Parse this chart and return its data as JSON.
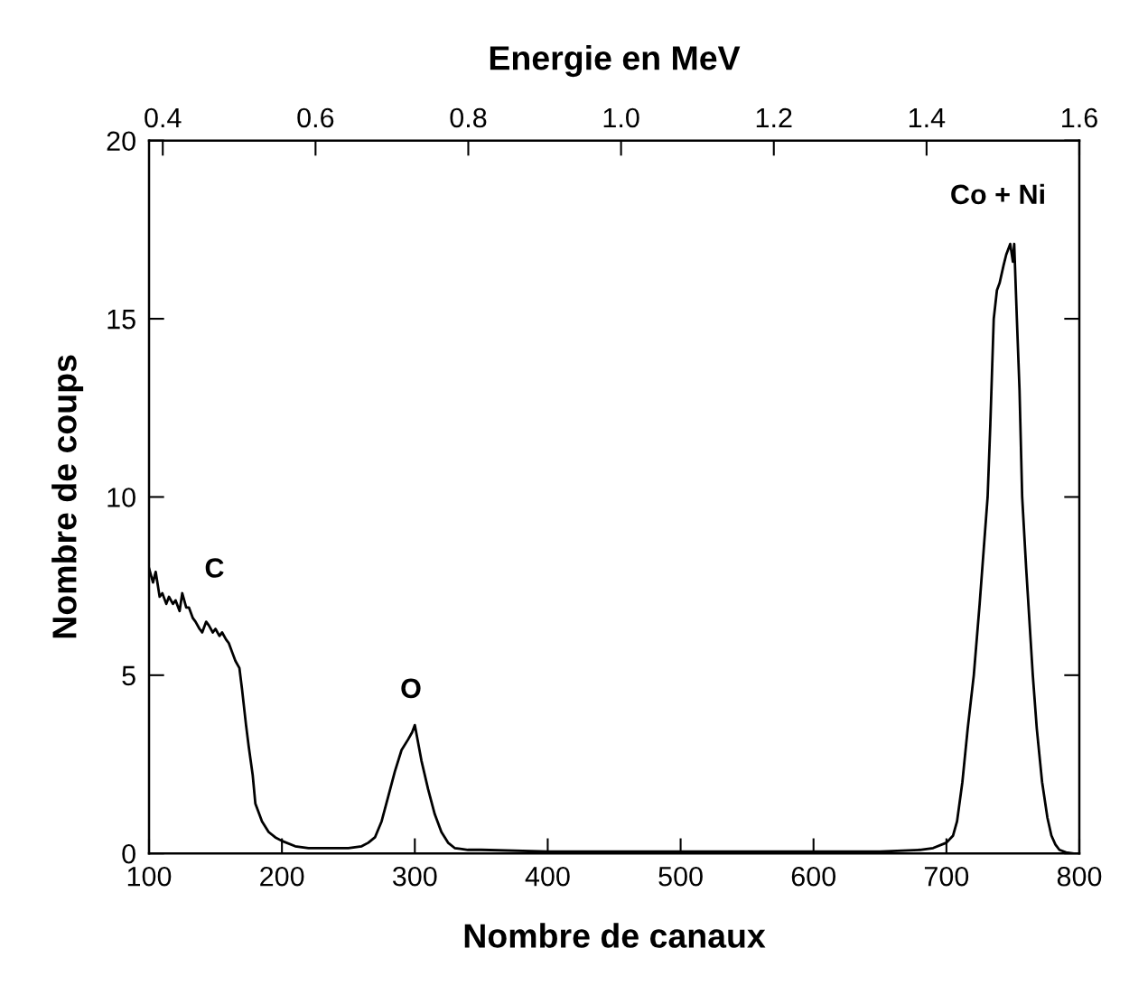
{
  "chart_data": {
    "type": "line",
    "xlabel": "Nombre de canaux",
    "ylabel": "Nombre de coups",
    "x2label": "Energie en MeV",
    "series": [
      {
        "color": "#000000",
        "x": [
          100,
          103,
          105,
          108,
          110,
          113,
          115,
          118,
          120,
          123,
          125,
          128,
          130,
          133,
          135,
          138,
          140,
          143,
          145,
          148,
          150,
          153,
          155,
          158,
          160,
          163,
          165,
          168,
          170,
          173,
          175,
          178,
          180,
          185,
          190,
          195,
          200,
          210,
          220,
          230,
          240,
          250,
          260,
          265,
          270,
          275,
          280,
          285,
          290,
          295,
          298,
          300,
          303,
          305,
          310,
          315,
          320,
          325,
          330,
          340,
          350,
          400,
          450,
          500,
          550,
          600,
          650,
          680,
          690,
          700,
          705,
          708,
          712,
          716,
          720.6,
          725,
          728,
          731,
          733,
          735.6,
          738,
          740,
          743,
          745,
          748,
          750,
          751,
          753,
          755,
          757,
          760,
          765,
          768,
          772,
          776,
          779,
          782,
          785,
          790,
          795
        ],
        "values": [
          8.0,
          7.6,
          7.9,
          7.2,
          7.3,
          7.0,
          7.2,
          7.0,
          7.1,
          6.8,
          7.3,
          6.9,
          6.9,
          6.6,
          6.5,
          6.3,
          6.2,
          6.5,
          6.4,
          6.2,
          6.3,
          6.1,
          6.2,
          6.0,
          5.9,
          5.6,
          5.4,
          5.2,
          4.6,
          3.6,
          3.0,
          2.2,
          1.4,
          0.9,
          0.6,
          0.45,
          0.35,
          0.2,
          0.15,
          0.15,
          0.15,
          0.15,
          0.2,
          0.3,
          0.45,
          0.9,
          1.6,
          2.3,
          2.9,
          3.2,
          3.4,
          3.6,
          3.0,
          2.6,
          1.8,
          1.1,
          0.6,
          0.3,
          0.15,
          0.1,
          0.1,
          0.05,
          0.05,
          0.05,
          0.05,
          0.05,
          0.05,
          0.1,
          0.15,
          0.3,
          0.5,
          0.9,
          2.0,
          3.5,
          5.0,
          7.0,
          8.5,
          10.0,
          12.0,
          15.0,
          15.8,
          16.0,
          16.5,
          16.8,
          17.1,
          16.6,
          17.1,
          15.0,
          13.0,
          10.0,
          8.0,
          5.0,
          3.5,
          2.0,
          1.0,
          0.5,
          0.25,
          0.1,
          0.03,
          0.0
        ]
      }
    ],
    "xlim": [
      100,
      800
    ],
    "xticks": [
      100,
      200,
      300,
      400,
      500,
      600,
      700,
      800
    ],
    "ylim": [
      0,
      20
    ],
    "yticks": [
      0,
      5,
      10,
      15,
      20
    ],
    "x2lim": [
      0.382,
      1.6
    ],
    "x2ticks": [
      {
        "value": 0.4,
        "label": "0.4"
      },
      {
        "value": 0.6,
        "label": "0.6"
      },
      {
        "value": 0.8,
        "label": "0.8"
      },
      {
        "value": 1,
        "label": "1.0"
      },
      {
        "value": 1.2,
        "label": "1.2"
      },
      {
        "value": 1.4,
        "label": "1.4"
      },
      {
        "value": 1.6,
        "label": "1.6"
      }
    ],
    "annotations": [
      "C",
      "O",
      "Co + Ni"
    ],
    "grid": false,
    "legend": false,
    "marker": "none",
    "line_style": "solid"
  }
}
